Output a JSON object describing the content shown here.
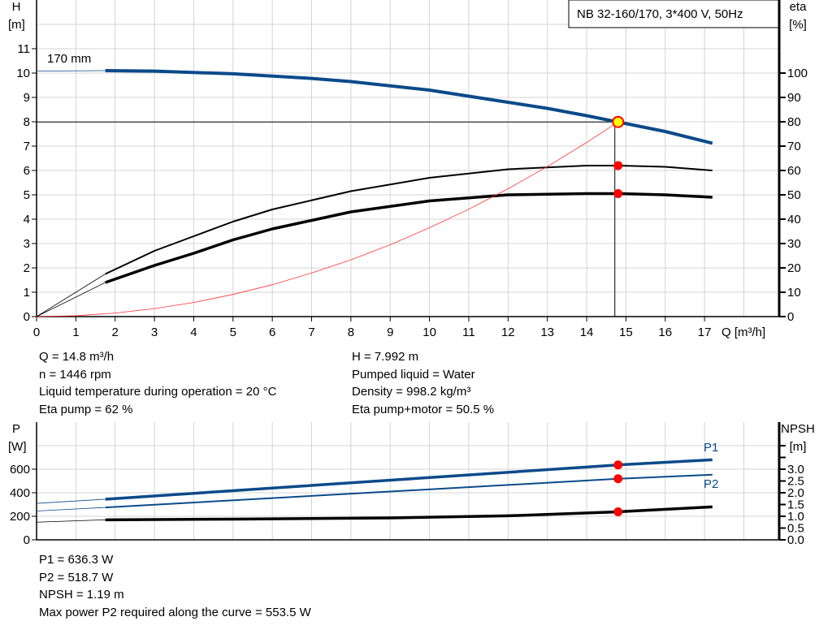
{
  "title": "NB 32-160/170, 3*400 V, 50Hz",
  "colors": {
    "head": "#0b4a8a",
    "eta": "#000000",
    "system": "#ff3333",
    "point": "#ff0000",
    "point_main": "#ffff00"
  },
  "chart_data": [
    {
      "type": "line",
      "xlabel": "Q [m³/h]",
      "ylabel_left": "H",
      "ylabel_left_unit": "[m]",
      "ylabel_right": "eta",
      "ylabel_right_unit": "[%]",
      "xlim": [
        0,
        18.9
      ],
      "ylim_left": [
        0,
        13
      ],
      "ylim_right": [
        0,
        130
      ],
      "grid": true,
      "x_ticks": [
        0,
        1,
        2,
        3,
        4,
        5,
        6,
        7,
        8,
        9,
        10,
        11,
        12,
        13,
        14,
        15,
        16,
        17
      ],
      "y_left_ticks": [
        0,
        1,
        2,
        3,
        4,
        5,
        6,
        7,
        8,
        9,
        10,
        11
      ],
      "y_right_ticks": [
        0,
        10,
        20,
        30,
        40,
        50,
        60,
        70,
        80,
        90,
        100
      ],
      "annotation": "170 mm",
      "series": [
        {
          "axis": "left",
          "style": "head",
          "extrapolated": {
            "x": [
              0,
              1.75
            ],
            "y": [
              10.08,
              10.1
            ]
          },
          "x": [
            1.75,
            3,
            5,
            7,
            8,
            10,
            12,
            13,
            14,
            14.8,
            16,
            17.2
          ],
          "y": [
            10.1,
            10.08,
            9.97,
            9.78,
            9.65,
            9.3,
            8.8,
            8.55,
            8.25,
            7.99,
            7.6,
            7.12
          ]
        },
        {
          "axis": "right",
          "style": "eta_pump",
          "extrapolated": {
            "x": [
              0,
              1.75
            ],
            "y": [
              0,
              17.5
            ]
          },
          "x": [
            1.75,
            3,
            4,
            5,
            6,
            8,
            10,
            12,
            14,
            14.8,
            16,
            17.2
          ],
          "y": [
            17.5,
            27,
            33,
            39,
            44,
            51.5,
            57,
            60.5,
            62,
            62,
            61.5,
            60
          ]
        },
        {
          "axis": "right",
          "style": "eta_total",
          "extrapolated": {
            "x": [
              0,
              1.75
            ],
            "y": [
              0,
              14
            ]
          },
          "x": [
            1.75,
            3,
            4,
            5,
            6,
            8,
            10,
            12,
            14,
            14.8,
            16,
            17.2
          ],
          "y": [
            14,
            21,
            26,
            31.5,
            36,
            43,
            47.5,
            50,
            50.5,
            50.5,
            50,
            49
          ]
        },
        {
          "axis": "left",
          "style": "system",
          "x": [
            0,
            1,
            2,
            3,
            4,
            5,
            6,
            7,
            8,
            9,
            10,
            11,
            12,
            13,
            14,
            14.8
          ],
          "y": [
            0,
            0.036,
            0.146,
            0.33,
            0.58,
            0.91,
            1.31,
            1.79,
            2.33,
            2.95,
            3.65,
            4.41,
            5.25,
            6.16,
            7.15,
            7.99
          ]
        }
      ],
      "operating_point": {
        "Q": 14.8,
        "H": 7.992,
        "eta_pump": 62,
        "eta_total": 50.5
      }
    },
    {
      "type": "line",
      "ylabel_left": "P",
      "ylabel_left_unit": "[W]",
      "ylabel_right": "NPSH",
      "ylabel_right_unit": "[m]",
      "xlim": [
        0,
        18.9
      ],
      "ylim_left": [
        0,
        1000
      ],
      "ylim_right": [
        0,
        5
      ],
      "grid": true,
      "y_left_ticks": [
        0,
        200,
        400,
        600
      ],
      "y_right_ticks": [
        "0.0",
        "0.5",
        "1.0",
        "1.5",
        "2.0",
        "2.5",
        "3.0"
      ],
      "series": [
        {
          "name": "P1",
          "axis": "left",
          "style": "p1",
          "extrapolated": {
            "x": [
              0,
              1.75
            ],
            "y": [
              310,
              345
            ]
          },
          "x": [
            1.75,
            14.8,
            17.2
          ],
          "y": [
            345,
            636.3,
            680
          ]
        },
        {
          "name": "P2",
          "axis": "left",
          "style": "p2",
          "extrapolated": {
            "x": [
              0,
              1.75
            ],
            "y": [
              245,
              275
            ]
          },
          "x": [
            1.75,
            14.8,
            17.2
          ],
          "y": [
            275,
            518.7,
            553.5
          ]
        },
        {
          "axis": "right",
          "style": "npsh",
          "extrapolated": {
            "x": [
              0,
              1.75
            ],
            "y": [
              0.75,
              0.85
            ]
          },
          "x": [
            1.75,
            5,
            9,
            12,
            14.8,
            17.2
          ],
          "y": [
            0.85,
            0.88,
            0.93,
            1.02,
            1.19,
            1.4
          ]
        }
      ],
      "operating_point": {
        "Q": 14.8,
        "P1": 636.3,
        "P2": 518.7,
        "NPSH": 1.19
      }
    }
  ],
  "info_top": {
    "left": [
      "Q = 14.8 m³/h",
      "n = 1446 rpm",
      "Liquid temperature during operation = 20 °C",
      "Eta pump = 62 %"
    ],
    "right": [
      "H = 7.992 m",
      "Pumped liquid = Water",
      "Density = 998.2 kg/m³",
      "Eta pump+motor = 50.5 %"
    ]
  },
  "info_bottom": [
    "P1 = 636.3 W",
    "P2 = 518.7 W",
    "NPSH = 1.19 m",
    "Max power P2 required along the curve = 553.5 W"
  ]
}
